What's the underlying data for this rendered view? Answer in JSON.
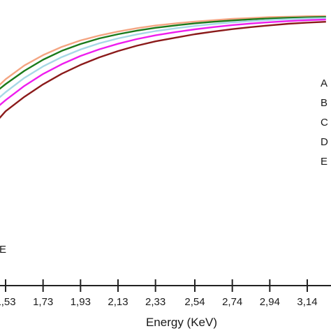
{
  "chart_data": {
    "type": "line",
    "xlabel": "Energy (KeV)",
    "xlim": [
      1.47,
      3.25
    ],
    "ylim": [
      0,
      1
    ],
    "x_ticks": [
      1.53,
      1.73,
      1.93,
      2.13,
      2.33,
      2.54,
      2.74,
      2.94,
      3.14
    ],
    "x_tick_labels": [
      "1,53",
      "1,73",
      "1,93",
      "2,13",
      "2,33",
      "2,54",
      "2,74",
      "2,94",
      "3,14"
    ],
    "legend_labels": [
      "A",
      "B",
      "C",
      "D",
      "E"
    ],
    "edge_label": "E",
    "edge_x": 1.47,
    "series": [
      {
        "color": "#f4a582",
        "x": [
          1.47,
          1.53,
          1.63,
          1.73,
          1.83,
          1.93,
          2.03,
          2.13,
          2.23,
          2.33,
          2.44,
          2.54,
          2.64,
          2.74,
          2.84,
          2.94,
          3.04,
          3.14,
          3.24
        ],
        "y": [
          0.64,
          0.687,
          0.749,
          0.796,
          0.833,
          0.862,
          0.884,
          0.902,
          0.917,
          0.929,
          0.939,
          0.947,
          0.953,
          0.959,
          0.963,
          0.967,
          0.969,
          0.971,
          0.972
        ]
      },
      {
        "color": "#1a7a1a",
        "x": [
          1.47,
          1.53,
          1.63,
          1.73,
          1.83,
          1.93,
          2.03,
          2.13,
          2.23,
          2.33,
          2.44,
          2.54,
          2.64,
          2.74,
          2.84,
          2.94,
          3.04,
          3.14,
          3.24
        ],
        "y": [
          0.625,
          0.665,
          0.725,
          0.775,
          0.815,
          0.846,
          0.871,
          0.89,
          0.906,
          0.919,
          0.93,
          0.939,
          0.946,
          0.952,
          0.957,
          0.961,
          0.964,
          0.966,
          0.968
        ]
      },
      {
        "color": "#a6d8e6",
        "x": [
          1.47,
          1.53,
          1.63,
          1.73,
          1.83,
          1.93,
          2.03,
          2.13,
          2.23,
          2.33,
          2.44,
          2.54,
          2.64,
          2.74,
          2.84,
          2.94,
          3.04,
          3.14,
          3.24
        ],
        "y": [
          0.585,
          0.629,
          0.693,
          0.745,
          0.787,
          0.821,
          0.849,
          0.871,
          0.889,
          0.904,
          0.917,
          0.927,
          0.936,
          0.943,
          0.949,
          0.954,
          0.958,
          0.961,
          0.963
        ]
      },
      {
        "color": "#ee1dee",
        "x": [
          1.47,
          1.53,
          1.63,
          1.73,
          1.83,
          1.93,
          2.03,
          2.13,
          2.23,
          2.33,
          2.44,
          2.54,
          2.64,
          2.74,
          2.84,
          2.94,
          3.04,
          3.14,
          3.24
        ],
        "y": [
          0.55,
          0.593,
          0.657,
          0.711,
          0.755,
          0.792,
          0.822,
          0.847,
          0.868,
          0.885,
          0.9,
          0.912,
          0.922,
          0.931,
          0.938,
          0.944,
          0.949,
          0.953,
          0.956
        ]
      },
      {
        "color": "#8b1a1a",
        "x": [
          1.47,
          1.49,
          1.53,
          1.63,
          1.73,
          1.83,
          1.93,
          2.03,
          2.13,
          2.23,
          2.33,
          2.44,
          2.54,
          2.64,
          2.74,
          2.84,
          2.94,
          3.04,
          3.14,
          3.24
        ],
        "y": [
          0.0,
          0.505,
          0.543,
          0.608,
          0.664,
          0.712,
          0.752,
          0.786,
          0.814,
          0.838,
          0.858,
          0.875,
          0.89,
          0.902,
          0.913,
          0.922,
          0.93,
          0.937,
          0.942,
          0.946
        ]
      }
    ]
  }
}
